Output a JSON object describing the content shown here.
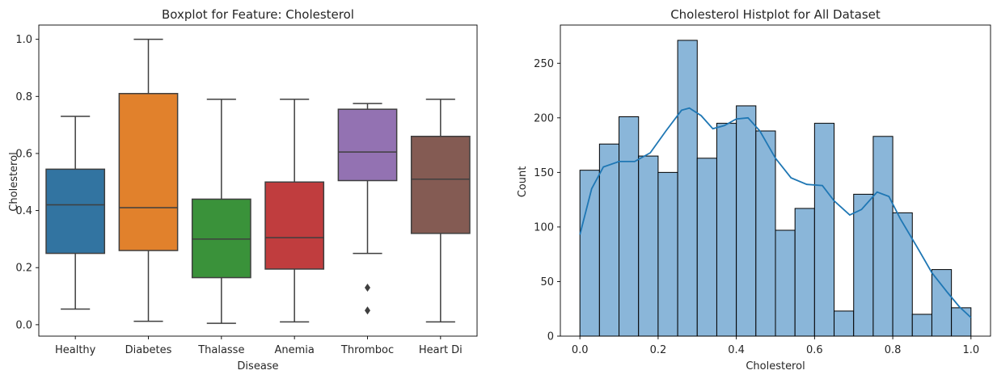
{
  "chart_data": [
    {
      "type": "boxplot",
      "title": "Boxplot for Feature: Cholesterol",
      "xlabel": "Disease",
      "ylabel": "Cholesterol",
      "ylim": [
        -0.04,
        1.05
      ],
      "yticks": [
        "0.0",
        "0.2",
        "0.4",
        "0.6",
        "0.8",
        "1.0"
      ],
      "grid": false,
      "boxes": [
        {
          "category": "Healthy",
          "color": "#3274a1",
          "whisker_low": 0.055,
          "q1": 0.25,
          "median": 0.42,
          "q3": 0.545,
          "whisker_high": 0.73,
          "outliers": []
        },
        {
          "category": "Diabetes",
          "color": "#e1812c",
          "whisker_low": 0.012,
          "q1": 0.26,
          "median": 0.41,
          "q3": 0.81,
          "whisker_high": 1.0,
          "outliers": []
        },
        {
          "category": "Thalasse",
          "color": "#3a923a",
          "whisker_low": 0.005,
          "q1": 0.165,
          "median": 0.3,
          "q3": 0.44,
          "whisker_high": 0.79,
          "outliers": []
        },
        {
          "category": "Anemia",
          "color": "#c03d3e",
          "whisker_low": 0.01,
          "q1": 0.195,
          "median": 0.305,
          "q3": 0.5,
          "whisker_high": 0.79,
          "outliers": []
        },
        {
          "category": "Thromboc",
          "color": "#9372b2",
          "whisker_low": 0.25,
          "q1": 0.505,
          "median": 0.605,
          "q3": 0.755,
          "whisker_high": 0.775,
          "outliers": [
            0.13,
            0.05
          ]
        },
        {
          "category": "Heart Di",
          "color": "#845b53",
          "whisker_low": 0.01,
          "q1": 0.32,
          "median": 0.51,
          "q3": 0.66,
          "whisker_high": 0.79,
          "outliers": []
        }
      ]
    },
    {
      "type": "histogram",
      "title": "Cholesterol Histplot for All Dataset",
      "xlabel": "Cholesterol",
      "ylabel": "Count",
      "xlim": [
        -0.05,
        1.05
      ],
      "ylim": [
        0,
        285
      ],
      "xticks": [
        "0.0",
        "0.2",
        "0.4",
        "0.6",
        "0.8",
        "1.0"
      ],
      "yticks": [
        "0",
        "50",
        "100",
        "150",
        "200",
        "250"
      ],
      "bar_color": "#8ab6d9",
      "kde_color": "#1f77b4",
      "bin_edges": [
        0.0,
        0.05,
        0.1,
        0.15,
        0.2,
        0.25,
        0.3,
        0.35,
        0.4,
        0.45,
        0.5,
        0.55,
        0.6,
        0.65,
        0.7,
        0.75,
        0.8,
        0.85,
        0.9,
        0.95,
        1.0
      ],
      "counts": [
        152,
        176,
        201,
        165,
        150,
        271,
        163,
        195,
        211,
        188,
        97,
        117,
        195,
        23,
        130,
        183,
        113,
        20,
        61,
        26
      ],
      "kde": {
        "x": [
          0.0,
          0.03,
          0.06,
          0.1,
          0.14,
          0.18,
          0.22,
          0.26,
          0.28,
          0.31,
          0.34,
          0.37,
          0.4,
          0.43,
          0.46,
          0.5,
          0.54,
          0.58,
          0.62,
          0.65,
          0.69,
          0.72,
          0.76,
          0.79,
          0.82,
          0.86,
          0.9,
          0.94,
          0.97,
          1.0
        ],
        "y": [
          93,
          135,
          155,
          160,
          160,
          168,
          188,
          207,
          209,
          202,
          190,
          193,
          199,
          200,
          188,
          163,
          145,
          139,
          138,
          124,
          111,
          116,
          132,
          128,
          107,
          83,
          58,
          40,
          27,
          17
        ]
      }
    }
  ]
}
